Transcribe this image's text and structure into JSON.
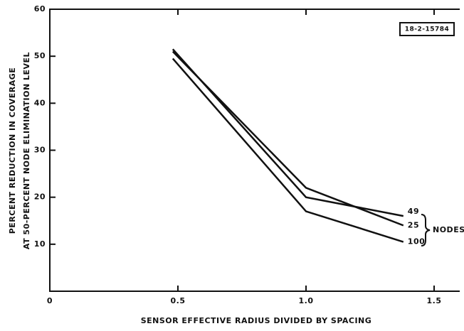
{
  "chart_data": {
    "type": "line",
    "xlabel": "SENSOR EFFECTIVE RADIUS DIVIDED BY SPACING",
    "ylabel": [
      "PERCENT REDUCTION IN COVERAGE",
      "AT 50-PERCENT NODE ELIMINATION LEVEL"
    ],
    "annotations": [
      "18-2-15784",
      "NODES"
    ],
    "x": [
      0.48,
      1.0,
      1.38
    ],
    "series": [
      {
        "name": "49",
        "color": "#111111",
        "values": [
          51.5,
          20,
          16
        ]
      },
      {
        "name": "25",
        "color": "#111111",
        "values": [
          51,
          22,
          14
        ]
      },
      {
        "name": "100",
        "color": "#111111",
        "values": [
          49.5,
          17,
          10.5
        ]
      }
    ],
    "xlim": [
      0,
      1.6
    ],
    "ylim": [
      0,
      60
    ],
    "xticks": [
      0,
      0.5,
      {
        "value": 1,
        "label": "1.0"
      },
      1.5
    ],
    "yticks": [
      10,
      20,
      30,
      40,
      50,
      60
    ]
  }
}
